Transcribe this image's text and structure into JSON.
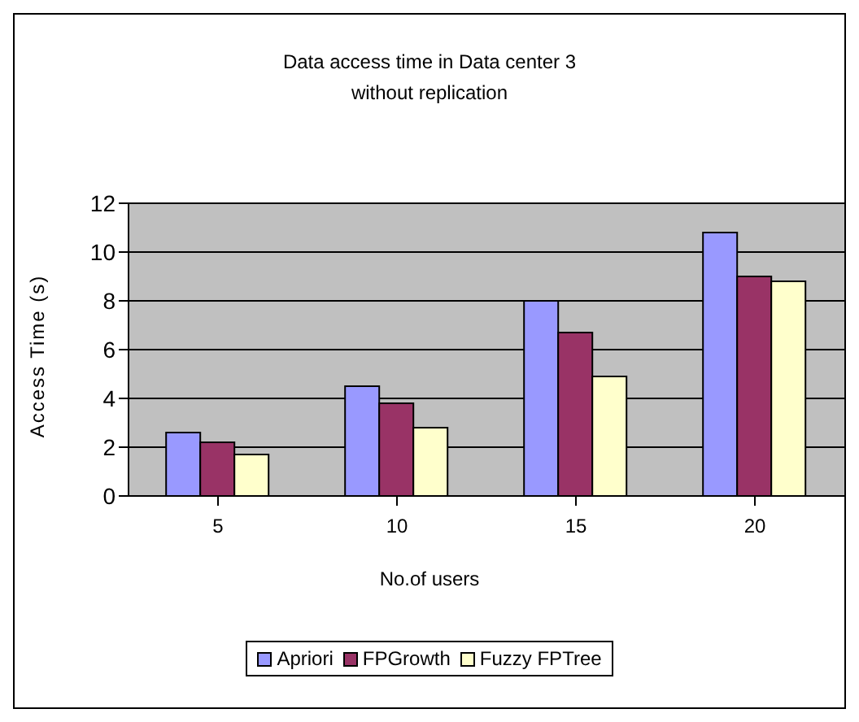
{
  "chart_data": {
    "type": "bar",
    "title": "Data access time in Data center 3\nwithout replication",
    "xlabel": "No.of users",
    "ylabel": "Access Time (s)",
    "categories": [
      "5",
      "10",
      "15",
      "20"
    ],
    "series": [
      {
        "name": "Apriori",
        "color": "#9999ff",
        "values": [
          2.6,
          4.5,
          8.0,
          10.8
        ]
      },
      {
        "name": "FPGrowth",
        "color": "#993366",
        "values": [
          2.2,
          3.8,
          6.7,
          9.0
        ]
      },
      {
        "name": "Fuzzy FPTree",
        "color": "#ffffcc",
        "values": [
          1.7,
          2.8,
          4.9,
          8.8
        ]
      }
    ],
    "ylim": [
      0,
      12
    ],
    "yticks": [
      0,
      2,
      4,
      6,
      8,
      10,
      12
    ],
    "grid": "y",
    "legend": "bottom"
  }
}
